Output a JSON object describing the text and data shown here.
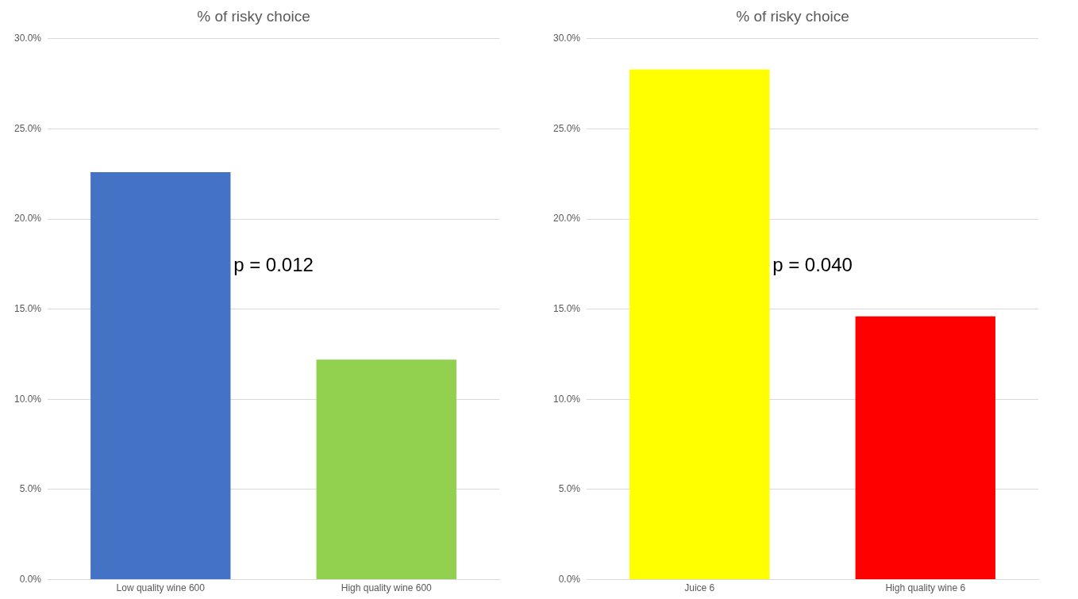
{
  "chart_data": [
    {
      "type": "bar",
      "title": "% of risky choice",
      "categories": [
        "Low quality wine 600",
        "High quality wine 600"
      ],
      "values": [
        22.6,
        12.2
      ],
      "colors": [
        "#4472c4",
        "#92d050"
      ],
      "ylim": [
        0,
        30
      ],
      "yticks": [
        {
          "value": 0,
          "label": "0.0%"
        },
        {
          "value": 5,
          "label": "5.0%"
        },
        {
          "value": 10,
          "label": "10.0%"
        },
        {
          "value": 15,
          "label": "15.0%"
        },
        {
          "value": 20,
          "label": "20.0%"
        },
        {
          "value": 25,
          "label": "25.0%"
        },
        {
          "value": 30,
          "label": "30.0%"
        }
      ],
      "grid": "y",
      "annotations": [
        "p = 0.012"
      ]
    },
    {
      "type": "bar",
      "title": "% of risky choice",
      "categories": [
        "Juice 6",
        "High quality wine 6"
      ],
      "values": [
        28.3,
        14.6
      ],
      "colors": [
        "#ffff00",
        "#ff0000"
      ],
      "ylim": [
        0,
        30
      ],
      "yticks": [
        {
          "value": 0,
          "label": "0.0%"
        },
        {
          "value": 5,
          "label": "5.0%"
        },
        {
          "value": 10,
          "label": "10.0%"
        },
        {
          "value": 15,
          "label": "15.0%"
        },
        {
          "value": 20,
          "label": "20.0%"
        },
        {
          "value": 25,
          "label": "25.0%"
        },
        {
          "value": 30,
          "label": "30.0%"
        }
      ],
      "grid": "y",
      "annotations": [
        "p = 0.040"
      ]
    }
  ]
}
